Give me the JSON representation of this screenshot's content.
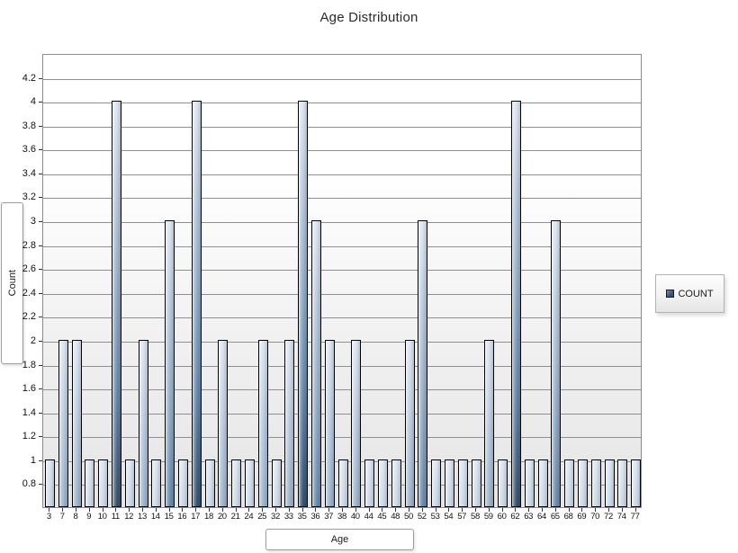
{
  "page": {
    "title": "Age Distribution"
  },
  "chart_data": {
    "type": "bar",
    "title": "Age Distribution",
    "xlabel": "Age",
    "ylabel": "Count",
    "legend_position": "right",
    "grid": true,
    "legend": [
      {
        "label": "COUNT",
        "marker_color": "#3d5a7c"
      }
    ],
    "categories": [
      3,
      7,
      8,
      9,
      10,
      11,
      12,
      13,
      14,
      15,
      16,
      17,
      18,
      20,
      21,
      24,
      25,
      32,
      33,
      35,
      36,
      37,
      38,
      40,
      44,
      45,
      48,
      50,
      52,
      53,
      54,
      57,
      58,
      59,
      60,
      62,
      63,
      64,
      65,
      68,
      69,
      70,
      72,
      74,
      77
    ],
    "series": [
      {
        "name": "COUNT",
        "values": [
          1,
          2,
          2,
          1,
          1,
          4,
          1,
          2,
          1,
          3,
          1,
          4,
          1,
          2,
          1,
          1,
          2,
          1,
          2,
          4,
          3,
          2,
          1,
          2,
          1,
          1,
          1,
          2,
          3,
          1,
          1,
          1,
          1,
          2,
          1,
          4,
          1,
          1,
          3,
          1,
          1,
          1,
          1,
          1,
          1
        ]
      }
    ],
    "ylim": [
      0.6,
      4.4
    ],
    "yticks": [
      0.8,
      1,
      1.2,
      1.4,
      1.6,
      1.8,
      2,
      2.2,
      2.4,
      2.6,
      2.8,
      3,
      3.2,
      3.4,
      3.6,
      3.8,
      4,
      4.2
    ],
    "colors": {
      "bar_top": "#dce6f1",
      "bar_bottom": "#33506c",
      "bar_border": "#000000",
      "gridline": "#8f8f8f",
      "plot_bg_top": "#ffffff",
      "plot_bg_bottom": "#e5e5e5"
    }
  }
}
